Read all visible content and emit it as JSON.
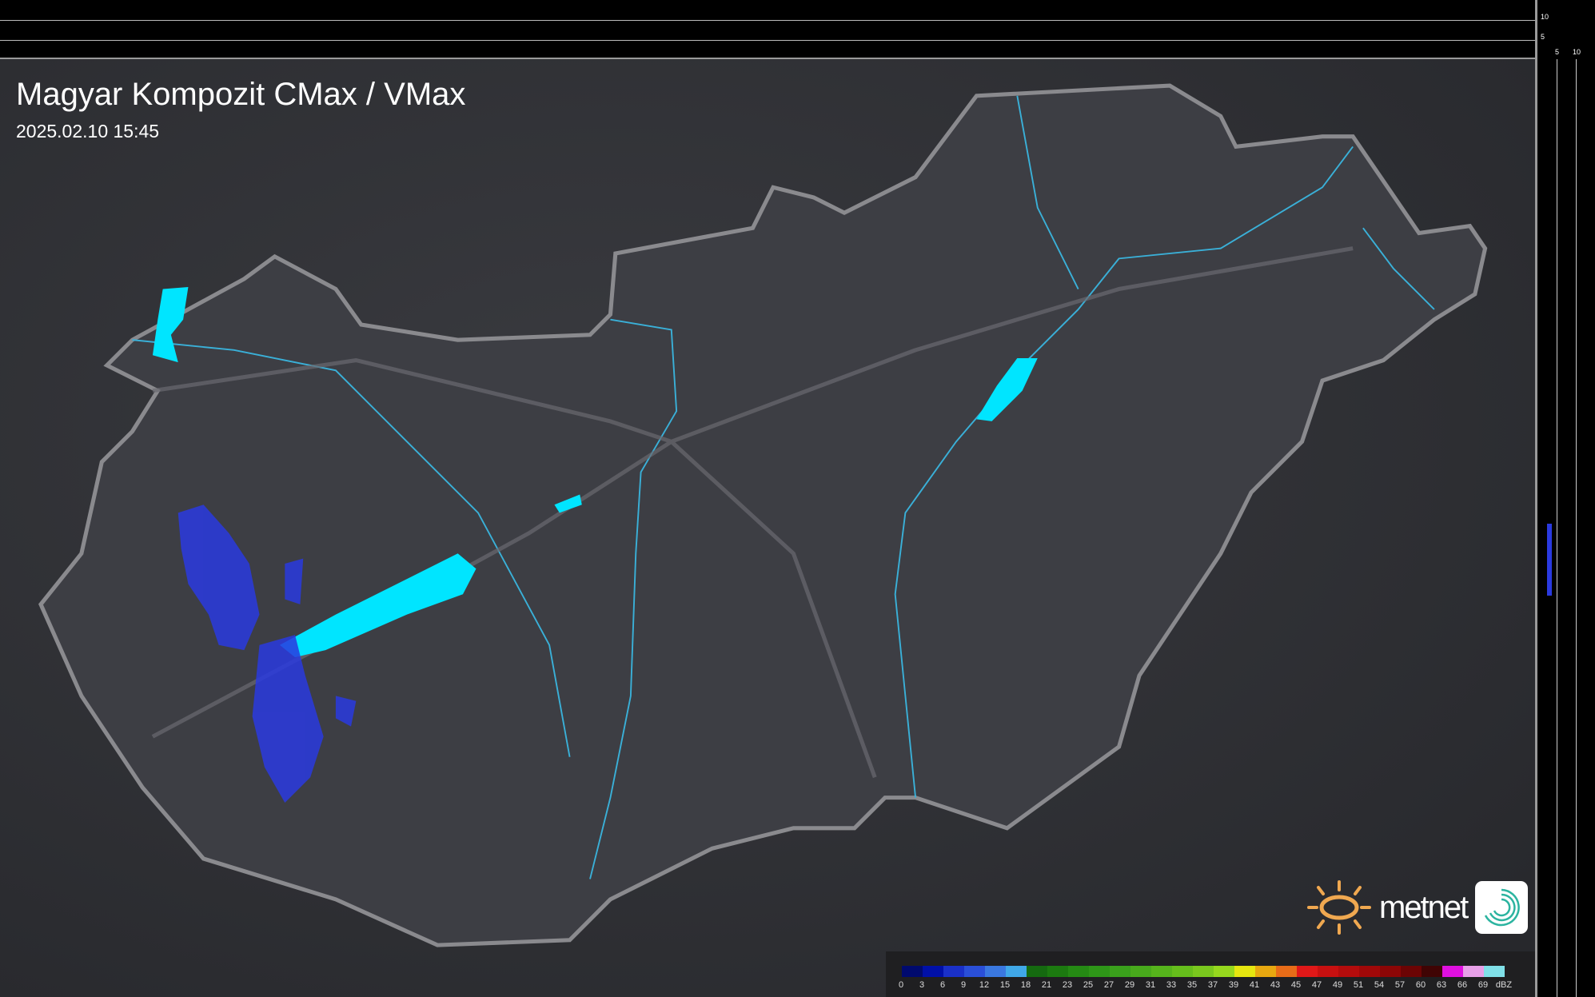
{
  "title": "Magyar Kompozit CMax / VMax",
  "timestamp": "2025.02.10 15:45",
  "top_profile": {
    "ticks": [
      "10",
      "5"
    ]
  },
  "side_profile": {
    "ticks": [
      "5",
      "10"
    ]
  },
  "legend": {
    "unit": "dBZ",
    "labels": [
      "0",
      "3",
      "6",
      "9",
      "12",
      "15",
      "18",
      "21",
      "23",
      "25",
      "27",
      "29",
      "31",
      "33",
      "35",
      "37",
      "39",
      "41",
      "43",
      "45",
      "47",
      "49",
      "51",
      "54",
      "57",
      "60",
      "63",
      "66",
      "69"
    ],
    "colors": [
      "#000a6e",
      "#0010a8",
      "#1a30c8",
      "#2a4fd8",
      "#3a78e0",
      "#40a8e8",
      "#156a10",
      "#1c7a10",
      "#258a14",
      "#2e9618",
      "#3aa01c",
      "#48aa1c",
      "#56b41c",
      "#66be1c",
      "#7ac81e",
      "#96d81e",
      "#e6e610",
      "#e8a810",
      "#e86c18",
      "#e01818",
      "#c81010",
      "#b40c0c",
      "#a00808",
      "#8c0606",
      "#6c0404",
      "#400404",
      "#e010e0",
      "#e8a0e8",
      "#80e0e8"
    ]
  },
  "brand": {
    "name": "metnet",
    "sun_color": "#f0a850",
    "app_color": "#2cb4a0"
  },
  "map": {
    "country": "Hungary",
    "lake_color": "#00e5ff",
    "river_color": "#3ab0d8",
    "border_color": "#8a8a8e",
    "precip_color": "#2a3ae0"
  }
}
